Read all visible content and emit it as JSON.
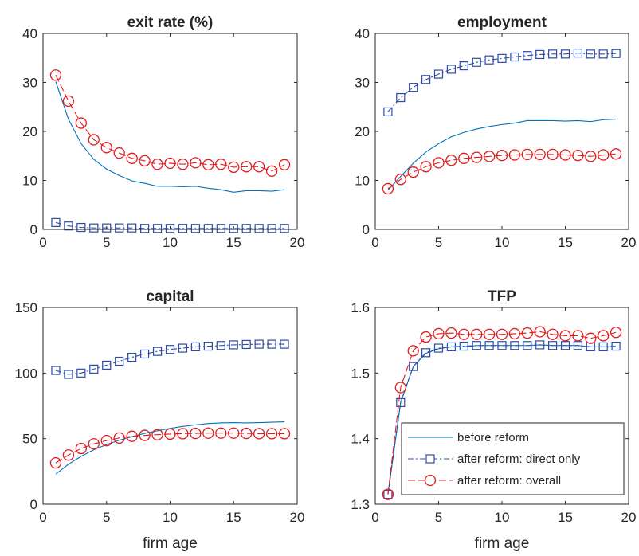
{
  "colors": {
    "before": "#0072BD",
    "direct": "#2C4BA8",
    "overall": "#E41A1C",
    "axis": "#262626"
  },
  "legend": {
    "placement": "bottom-right of TFP panel",
    "entries": [
      {
        "label": "before reform",
        "style": "line"
      },
      {
        "label": "after reform: direct only",
        "style": "dashdot-square"
      },
      {
        "label": "after reform: overall",
        "style": "dash-circle"
      }
    ]
  },
  "chart_data": [
    {
      "type": "line",
      "title": "exit rate (%)",
      "xlabel": "",
      "ylabel": "",
      "xlim": [
        0,
        20
      ],
      "ylim": [
        0,
        40
      ],
      "xticks": [
        0,
        5,
        10,
        15,
        20
      ],
      "yticks": [
        0,
        10,
        20,
        30,
        40
      ],
      "ytick_labels": [
        "0",
        "10",
        "20",
        "30",
        "40"
      ],
      "x": [
        1,
        2,
        3,
        4,
        5,
        6,
        7,
        8,
        9,
        10,
        11,
        12,
        13,
        14,
        15,
        16,
        17,
        18,
        19
      ],
      "series": [
        {
          "name": "before reform",
          "values": [
            30.2,
            22.5,
            17.5,
            14.3,
            12.3,
            11.0,
            9.9,
            9.4,
            8.8,
            8.8,
            8.7,
            8.8,
            8.4,
            8.1,
            7.6,
            7.9,
            7.9,
            7.8,
            8.1
          ]
        },
        {
          "name": "after reform: direct only",
          "values": [
            1.4,
            0.7,
            0.4,
            0.3,
            0.3,
            0.3,
            0.3,
            0.2,
            0.2,
            0.2,
            0.2,
            0.2,
            0.2,
            0.2,
            0.2,
            0.2,
            0.2,
            0.2,
            0.2
          ]
        },
        {
          "name": "after reform: overall",
          "values": [
            31.5,
            26.2,
            21.7,
            18.3,
            16.7,
            15.6,
            14.5,
            14.0,
            13.3,
            13.5,
            13.3,
            13.6,
            13.2,
            13.3,
            12.7,
            12.8,
            12.8,
            11.9,
            13.2
          ]
        }
      ]
    },
    {
      "type": "line",
      "title": "employment",
      "xlabel": "",
      "ylabel": "",
      "xlim": [
        0,
        20
      ],
      "ylim": [
        0,
        40
      ],
      "xticks": [
        0,
        5,
        10,
        15,
        20
      ],
      "yticks": [
        0,
        10,
        20,
        30,
        40
      ],
      "ytick_labels": [
        "0",
        "10",
        "20",
        "30",
        "40"
      ],
      "x": [
        1,
        2,
        3,
        4,
        5,
        6,
        7,
        8,
        9,
        10,
        11,
        12,
        13,
        14,
        15,
        16,
        17,
        18,
        19
      ],
      "series": [
        {
          "name": "before reform",
          "values": [
            8.0,
            10.8,
            13.5,
            15.8,
            17.5,
            18.9,
            19.8,
            20.5,
            21.0,
            21.4,
            21.7,
            22.2,
            22.2,
            22.2,
            22.1,
            22.2,
            22.0,
            22.4,
            22.5
          ]
        },
        {
          "name": "after reform: direct only",
          "values": [
            24.0,
            26.9,
            29.0,
            30.6,
            31.7,
            32.7,
            33.4,
            34.1,
            34.6,
            34.9,
            35.2,
            35.5,
            35.7,
            35.8,
            35.8,
            36.0,
            35.8,
            35.8,
            35.9
          ]
        },
        {
          "name": "after reform: overall",
          "values": [
            8.3,
            10.2,
            11.7,
            12.8,
            13.6,
            14.1,
            14.5,
            14.7,
            14.9,
            15.1,
            15.2,
            15.3,
            15.3,
            15.3,
            15.2,
            15.1,
            14.9,
            15.2,
            15.4
          ]
        }
      ]
    },
    {
      "type": "line",
      "title": "capital",
      "xlabel": "firm age",
      "ylabel": "",
      "xlim": [
        0,
        20
      ],
      "ylim": [
        0,
        150
      ],
      "xticks": [
        0,
        5,
        10,
        15,
        20
      ],
      "yticks": [
        0,
        50,
        100,
        150
      ],
      "ytick_labels": [
        "0",
        "50",
        "100",
        "150"
      ],
      "x": [
        1,
        2,
        3,
        4,
        5,
        6,
        7,
        8,
        9,
        10,
        11,
        12,
        13,
        14,
        15,
        16,
        17,
        18,
        19
      ],
      "series": [
        {
          "name": "before reform",
          "values": [
            23.0,
            30.5,
            36.5,
            41.5,
            45.5,
            48.8,
            51.5,
            54.0,
            56.0,
            57.8,
            59.3,
            60.5,
            61.5,
            62.0,
            62.2,
            62.0,
            62.2,
            62.5,
            62.8
          ]
        },
        {
          "name": "after reform: direct only",
          "values": [
            102,
            99,
            100,
            103,
            106,
            109,
            112,
            114.5,
            116.5,
            118,
            119,
            120,
            120.5,
            121,
            121.5,
            121.8,
            122,
            122,
            122
          ]
        },
        {
          "name": "after reform: overall",
          "values": [
            31.5,
            37.5,
            42.5,
            46,
            48.5,
            50.5,
            51.8,
            52.5,
            53,
            53.5,
            53.8,
            54,
            54.2,
            54.2,
            54.2,
            54,
            53.8,
            53.8,
            53.8
          ]
        }
      ]
    },
    {
      "type": "line",
      "title": "TFP",
      "xlabel": "firm age",
      "ylabel": "",
      "xlim": [
        0,
        20
      ],
      "ylim": [
        1.3,
        1.6
      ],
      "xticks": [
        0,
        5,
        10,
        15,
        20
      ],
      "yticks": [
        1.3,
        1.4,
        1.5,
        1.6
      ],
      "ytick_labels": [
        "1.3",
        "1.4",
        "1.5",
        "1.6"
      ],
      "x": [
        1,
        2,
        3,
        4,
        5,
        6,
        7,
        8,
        9,
        10,
        11,
        12,
        13,
        14,
        15,
        16,
        17,
        18,
        19
      ],
      "series": [
        {
          "name": "before reform",
          "values": [
            1.315,
            1.455,
            1.51,
            1.53,
            1.537,
            1.54,
            1.54,
            1.542,
            1.542,
            1.542,
            1.542,
            1.542,
            1.543,
            1.542,
            1.542,
            1.542,
            1.54,
            1.54,
            1.54
          ]
        },
        {
          "name": "after reform: direct only",
          "values": [
            1.315,
            1.455,
            1.51,
            1.531,
            1.538,
            1.54,
            1.541,
            1.542,
            1.542,
            1.542,
            1.542,
            1.542,
            1.543,
            1.542,
            1.542,
            1.542,
            1.54,
            1.54,
            1.541
          ]
        },
        {
          "name": "after reform: overall",
          "values": [
            1.315,
            1.478,
            1.534,
            1.555,
            1.56,
            1.561,
            1.559,
            1.559,
            1.559,
            1.559,
            1.56,
            1.561,
            1.563,
            1.559,
            1.557,
            1.557,
            1.553,
            1.557,
            1.562
          ]
        }
      ]
    }
  ]
}
